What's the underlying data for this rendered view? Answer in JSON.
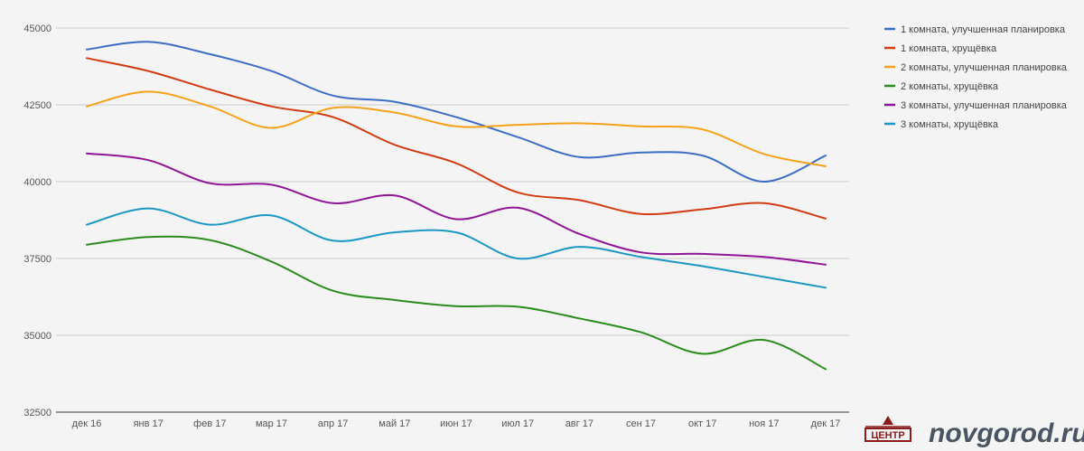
{
  "chart_data": {
    "type": "line",
    "title": "",
    "xlabel": "",
    "ylabel": "",
    "categories": [
      "дек 16",
      "янв 17",
      "фев 17",
      "мар 17",
      "апр 17",
      "май 17",
      "июн 17",
      "июл 17",
      "авг 17",
      "сен 17",
      "окт 17",
      "ноя 17",
      "дек 17"
    ],
    "yticks": [
      "32500",
      "35000",
      "37500",
      "40000",
      "42500",
      "45000"
    ],
    "ylim": [
      32500,
      45000
    ],
    "grid": true,
    "legend_position": "right",
    "series": [
      {
        "name": "1 комната, улучшенная планировка",
        "color": "#3c6dc5",
        "values": [
          44300,
          44550,
          44150,
          43600,
          42800,
          42600,
          42100,
          41450,
          40800,
          40950,
          40850,
          40000,
          40850
        ]
      },
      {
        "name": "1 комната, хрущёвка",
        "color": "#d23c12",
        "values": [
          44020,
          43600,
          43000,
          42450,
          42100,
          41200,
          40600,
          39650,
          39400,
          38950,
          39100,
          39300,
          38800
        ]
      },
      {
        "name": "2 комнаты, улучшенная планировка",
        "color": "#f6a11a",
        "values": [
          42450,
          42930,
          42450,
          41750,
          42400,
          42250,
          41800,
          41850,
          41900,
          41800,
          41700,
          40900,
          40500
        ]
      },
      {
        "name": "2 комнаты, хрущёвка",
        "color": "#2a8c1c",
        "values": [
          37950,
          38200,
          38100,
          37400,
          36450,
          36150,
          35950,
          35930,
          35550,
          35100,
          34400,
          34850,
          33900
        ]
      },
      {
        "name": "3 комнаты, улучшенная планировка",
        "color": "#8f1596",
        "values": [
          40920,
          40700,
          39950,
          39900,
          39300,
          39550,
          38780,
          39150,
          38300,
          37700,
          37650,
          37550,
          37300
        ]
      },
      {
        "name": "3 комнаты, хрущёвка",
        "color": "#1a97c4",
        "values": [
          38600,
          39130,
          38600,
          38900,
          38080,
          38350,
          38350,
          37500,
          37880,
          37550,
          37250,
          36900,
          36550
        ]
      }
    ]
  },
  "watermark": {
    "logo_text": "ЦЕНТР",
    "site": "novgorod.ru",
    "brand_color": "#8b1a1a"
  }
}
